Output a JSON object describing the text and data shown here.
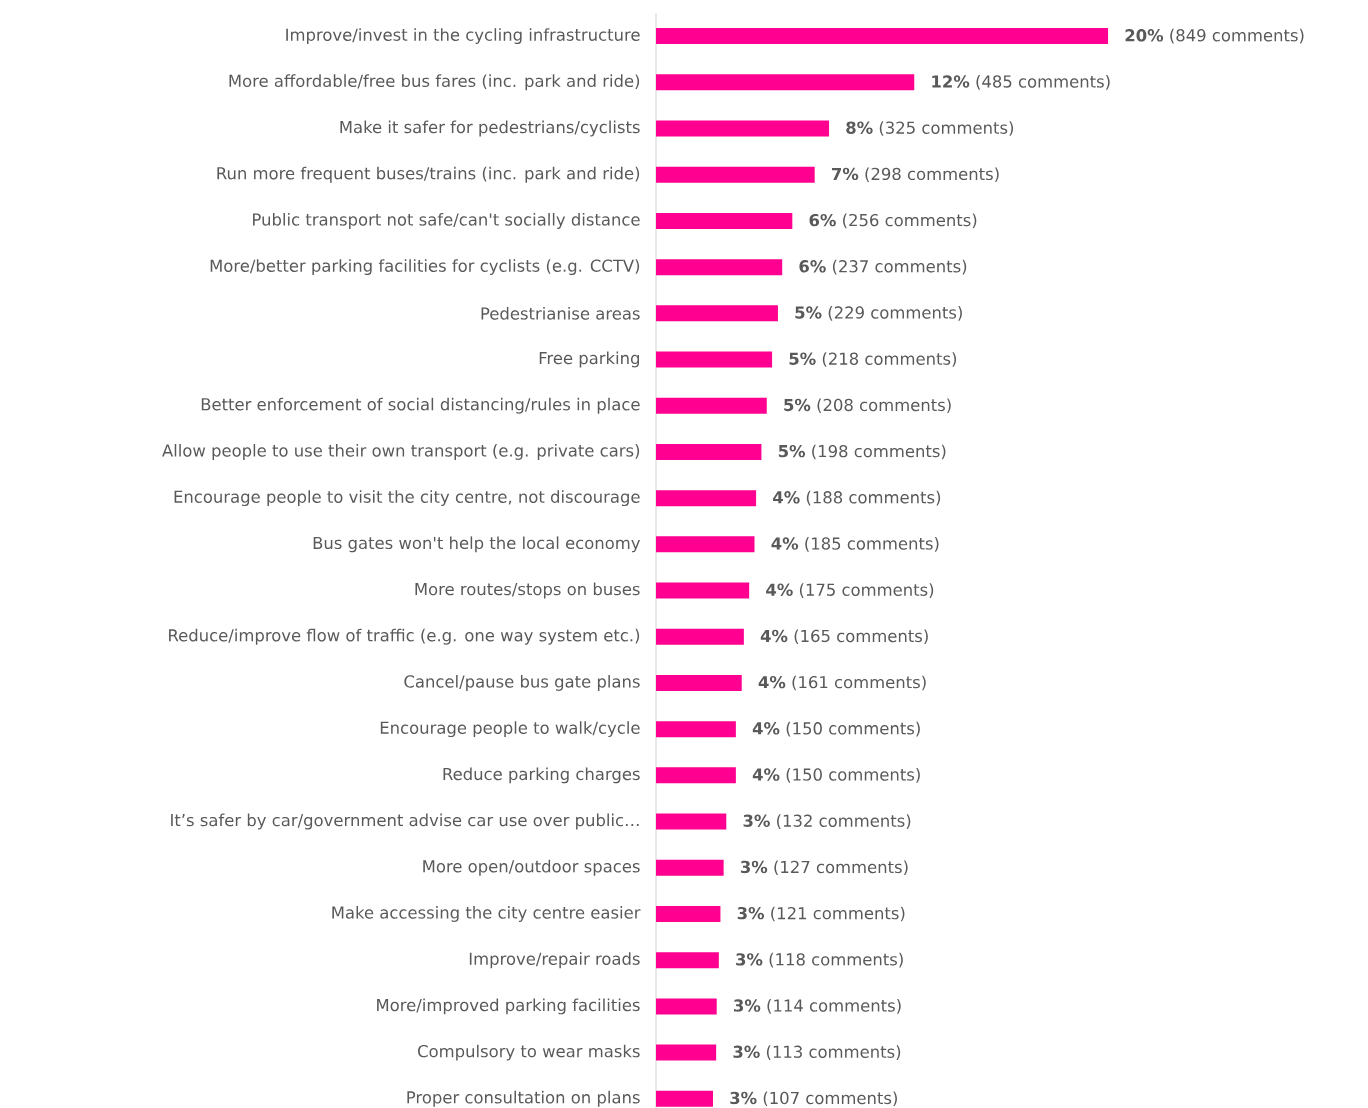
{
  "chart_data": {
    "type": "bar",
    "orientation": "horizontal",
    "color": "#ff0090",
    "categories": [
      "Improve/invest in the cycling infrastructure",
      "More affordable/free bus fares (inc. park and ride)",
      "Make it safer for pedestrians/cyclists",
      "Run more frequent buses/trains (inc. park and ride)",
      "Public transport not safe/can't socially distance",
      "More/better parking facilities for cyclists (e.g. CCTV)",
      "Pedestrianise areas",
      "Free parking",
      "Better enforcement of social distancing/rules in place",
      "Allow people to use their own transport (e.g. private cars)",
      "Encourage people to visit the city centre, not discourage",
      "Bus gates won't help the local economy",
      "More routes/stops on buses",
      "Reduce/improve flow of traffic (e.g. one way system etc.)",
      "Cancel/pause bus gate plans",
      "Encourage people to walk/cycle",
      "Reduce parking charges",
      "It’s safer by car/government advise car use over public…",
      "More open/outdoor spaces",
      "Make accessing the city centre easier",
      "Improve/repair roads",
      "More/improved parking facilities",
      "Compulsory to wear masks",
      "Proper consultation on plans"
    ],
    "values": [
      849,
      485,
      325,
      298,
      256,
      237,
      229,
      218,
      208,
      198,
      188,
      185,
      175,
      165,
      161,
      150,
      150,
      132,
      127,
      121,
      118,
      114,
      113,
      107
    ],
    "value_labels": [
      "**20%** (849 comments)",
      "**12%** (485 comments)",
      "**8%** (325 comments)",
      "**7%** (298 comments)",
      "**6%** (256 comments)",
      "**6%** (237 comments)",
      "**5%** (229 comments)",
      "**5%** (218 comments)",
      "**5%** (208 comments)",
      "**5%** (198 comments)",
      "**4%** (188 comments)",
      "**4%** (185 comments)",
      "**4%** (175 comments)",
      "**4%** (165 comments)",
      "**4%** (161 comments)",
      "**4%** (150 comments)",
      "**4%** (150 comments)",
      "**3%** (132 comments)",
      "**3%** (127 comments)",
      "**3%** (121 comments)",
      "**3%** (118 comments)",
      "**3%** (114 comments)",
      "**3%** (113 comments)",
      "**3%** (107 comments)"
    ]
  }
}
